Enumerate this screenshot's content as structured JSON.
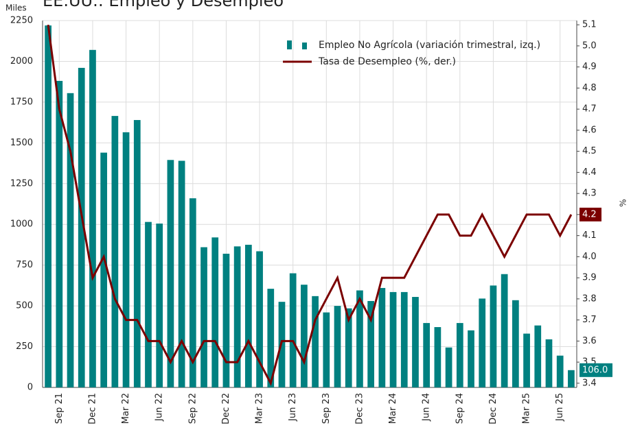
{
  "chart_data": {
    "type": "bar",
    "title": "EE.UU.: Empleo y Desempleo",
    "y_label": "Miles",
    "y2_label": "%",
    "categories": [
      null,
      "Sep 21",
      null,
      null,
      "Dec 21",
      null,
      null,
      "Mar 22",
      null,
      null,
      "Jun 22",
      null,
      null,
      "Sep 22",
      null,
      null,
      "Dec 22",
      null,
      null,
      "Mar 23",
      null,
      null,
      "Jun 23",
      null,
      null,
      "Sep 23",
      null,
      null,
      "Dec 23",
      null,
      null,
      "Mar 24",
      null,
      null,
      "Jun 24",
      null,
      null,
      "Sep 24",
      null,
      null,
      "Dec 24",
      null,
      null,
      "Mar 25",
      null,
      null,
      "Jun 25",
      null
    ],
    "series": [
      {
        "name": "Empleo No Agrícola (variación trimestral, izq.)",
        "type": "bar",
        "color": "#008080",
        "values": [
          2220,
          1880,
          1805,
          1960,
          2070,
          1440,
          1665,
          1565,
          1640,
          1015,
          1005,
          1395,
          1390,
          1160,
          860,
          920,
          820,
          865,
          875,
          835,
          605,
          525,
          700,
          630,
          560,
          460,
          500,
          485,
          595,
          530,
          610,
          585,
          585,
          555,
          395,
          370,
          245,
          395,
          350,
          545,
          625,
          695,
          535,
          330,
          380,
          295,
          195,
          106
        ],
        "value_labels": [
          null,
          null,
          null,
          null,
          null,
          null,
          null,
          null,
          null,
          null,
          null,
          null,
          null,
          null,
          null,
          null,
          null,
          null,
          null,
          null,
          null,
          null,
          null,
          null,
          null,
          null,
          null,
          null,
          null,
          null,
          null,
          null,
          null,
          null,
          null,
          null,
          null,
          null,
          null,
          null,
          null,
          null,
          null,
          null,
          null,
          null,
          null,
          "106.0"
        ]
      },
      {
        "name": "Tasa de Desempleo (%, der.)",
        "type": "line",
        "axis": "y2",
        "color": "#7b0000",
        "values": [
          5.1,
          4.7,
          4.5,
          4.2,
          3.9,
          4.0,
          3.8,
          3.7,
          3.7,
          3.6,
          3.6,
          3.5,
          3.6,
          3.5,
          3.6,
          3.6,
          3.5,
          3.5,
          3.6,
          3.5,
          3.4,
          3.6,
          3.6,
          3.5,
          3.7,
          3.8,
          3.9,
          3.7,
          3.8,
          3.7,
          3.9,
          3.9,
          3.9,
          4.0,
          4.1,
          4.2,
          4.2,
          4.1,
          4.1,
          4.2,
          4.1,
          4.0,
          4.1,
          4.2,
          4.2,
          4.2,
          4.1,
          4.2
        ],
        "value_labels": [
          null,
          null,
          null,
          null,
          null,
          null,
          null,
          null,
          null,
          null,
          null,
          null,
          null,
          null,
          null,
          null,
          null,
          null,
          null,
          null,
          null,
          null,
          null,
          null,
          null,
          null,
          null,
          null,
          null,
          null,
          null,
          null,
          null,
          null,
          null,
          null,
          null,
          null,
          null,
          null,
          null,
          null,
          null,
          null,
          null,
          null,
          null,
          "4.2"
        ]
      }
    ],
    "ylim": [
      0,
      2250
    ],
    "yticks": [
      0,
      250,
      500,
      750,
      1000,
      1250,
      1500,
      1750,
      2000,
      2250
    ],
    "y2lim": [
      3.38,
      5.12
    ],
    "y2ticks": [
      3.4,
      3.5,
      3.6,
      3.7,
      3.8,
      3.9,
      {
        "value": 4,
        "label": "4.0"
      },
      4.1,
      4.2,
      4.3,
      4.4,
      4.5,
      4.6,
      4.7,
      4.8,
      4.9,
      {
        "value": 5,
        "label": "5.0"
      },
      5.1
    ],
    "grid": true,
    "legend": "upper right"
  }
}
